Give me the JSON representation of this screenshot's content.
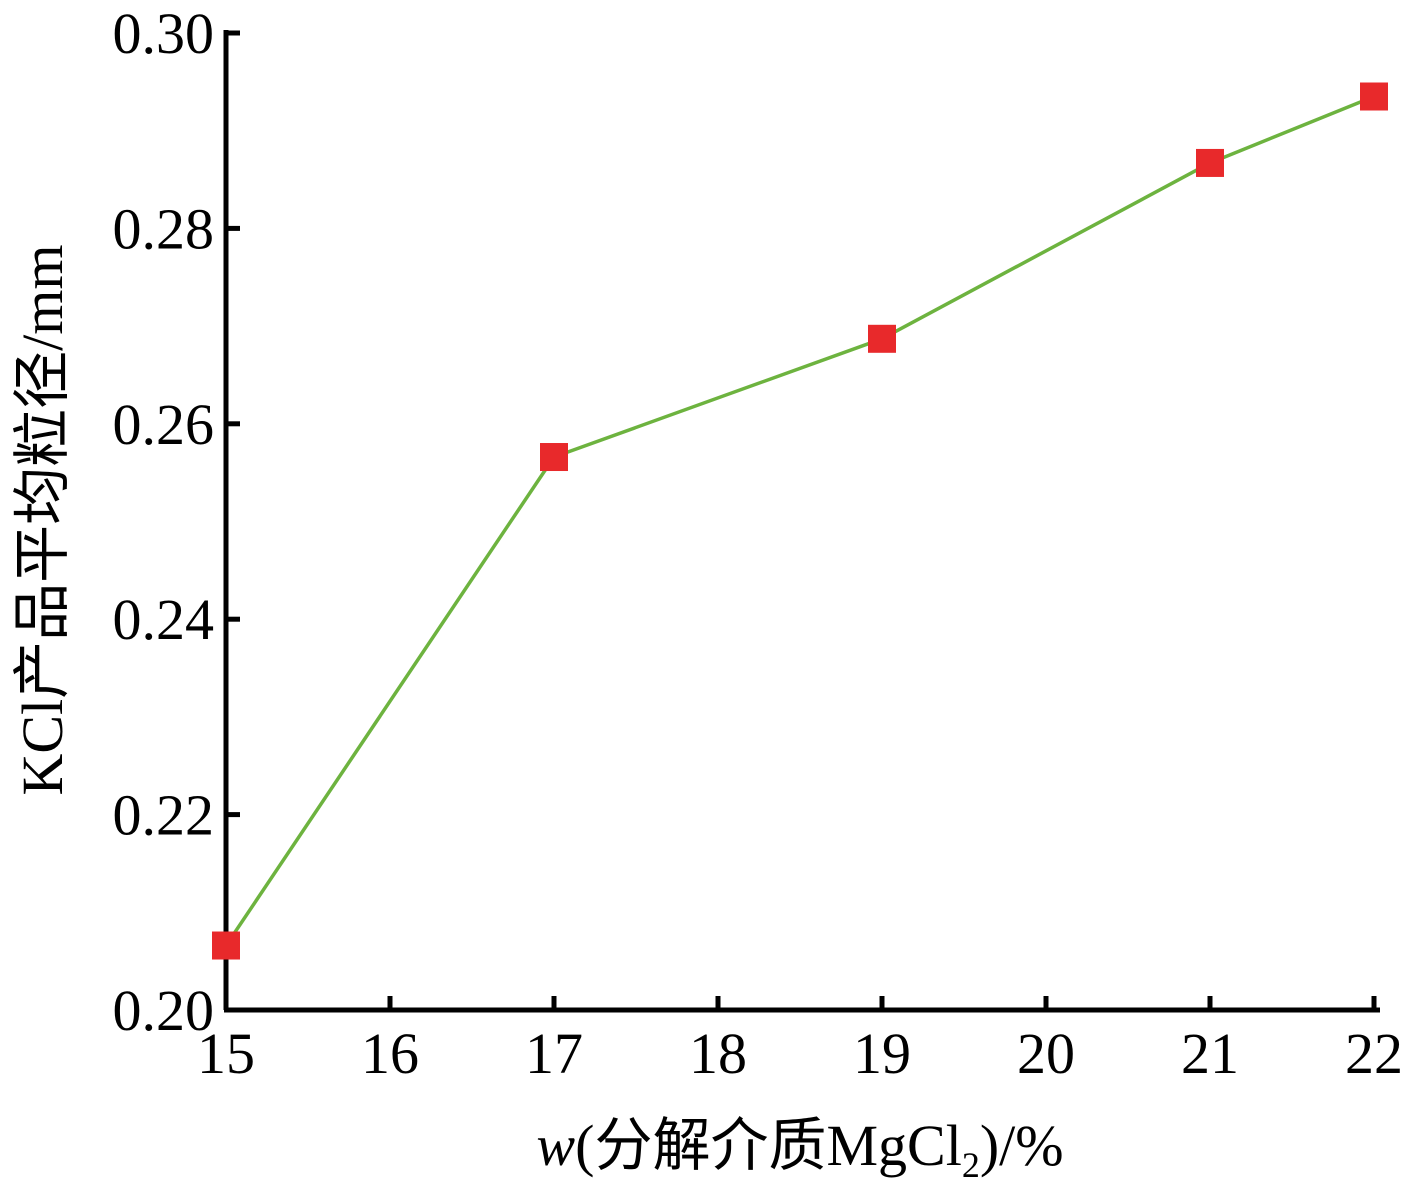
{
  "chart_data": {
    "type": "line",
    "title": "",
    "xlabel": {
      "var": "w",
      "paren_open": "(",
      "text": "分解介质MgCl",
      "sub": "2",
      "tail": ")/%"
    },
    "ylabel": "KCl产品平均粒径/mm",
    "xlim": [
      15,
      22
    ],
    "ylim": [
      0.2,
      0.3
    ],
    "x_ticks": [
      "15",
      "16",
      "17",
      "18",
      "19",
      "20",
      "21",
      "22"
    ],
    "y_ticks": [
      "0.20",
      "0.22",
      "0.24",
      "0.26",
      "0.28",
      "0.30"
    ],
    "series": [
      {
        "x": [
          15,
          17,
          19,
          21,
          22
        ],
        "values": [
          0.2066,
          0.2566,
          0.2687,
          0.2867,
          0.2935
        ],
        "line_color": "#6db33f",
        "marker": "square",
        "marker_color": "#e8292b"
      }
    ],
    "grid": false,
    "legend": "none"
  }
}
